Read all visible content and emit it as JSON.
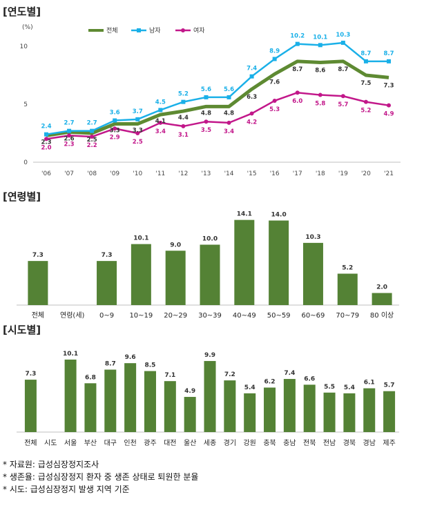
{
  "chart_data": [
    {
      "type": "line",
      "section_title": "[연도별]",
      "unit_label": "(%)",
      "categories": [
        "'06",
        "'07",
        "'08",
        "'09",
        "'10",
        "'11",
        "'12",
        "'13",
        "'14",
        "'15",
        "'16",
        "'17",
        "'18",
        "'19",
        "'20",
        "'21"
      ],
      "ylim": [
        0,
        10
      ],
      "yticks": [
        0,
        5,
        10
      ],
      "legend_position": "top",
      "series": [
        {
          "name": "전체",
          "color": "#5e8a32",
          "values": [
            2.3,
            2.6,
            2.5,
            3.3,
            3.3,
            4.1,
            4.4,
            4.8,
            4.8,
            6.3,
            7.6,
            8.7,
            8.6,
            8.7,
            7.5,
            7.3
          ]
        },
        {
          "name": "남자",
          "color": "#1ab0e8",
          "values": [
            2.4,
            2.7,
            2.7,
            3.6,
            3.7,
            4.5,
            5.2,
            5.6,
            5.6,
            7.4,
            8.9,
            10.2,
            10.1,
            10.3,
            8.7,
            8.7
          ]
        },
        {
          "name": "여자",
          "color": "#c2178a",
          "values": [
            2.0,
            2.3,
            2.2,
            2.9,
            2.5,
            3.4,
            3.1,
            3.5,
            3.4,
            4.2,
            5.3,
            6.0,
            5.8,
            5.7,
            5.2,
            4.9
          ]
        }
      ]
    },
    {
      "type": "bar",
      "section_title": "[연령별]",
      "color": "#548235",
      "categories": [
        "전체",
        "연령(세)",
        "0~9",
        "10~19",
        "20~29",
        "30~39",
        "40~49",
        "50~59",
        "60~69",
        "70~79",
        "80 이상"
      ],
      "values": [
        7.3,
        null,
        7.3,
        10.1,
        9.0,
        10.0,
        14.1,
        14.0,
        10.3,
        5.2,
        2.0
      ],
      "value_labels": [
        "7.3",
        "",
        "7.3",
        "10.1",
        "9.0",
        "10.0",
        "14.1",
        "14.0",
        "10.3",
        "5.2",
        "2.0"
      ]
    },
    {
      "type": "bar",
      "section_title": "[시도별]",
      "color": "#548235",
      "categories": [
        "전체",
        "시도",
        "서울",
        "부산",
        "대구",
        "인천",
        "광주",
        "대전",
        "울산",
        "세종",
        "경기",
        "강원",
        "충북",
        "충남",
        "전북",
        "전남",
        "경북",
        "경남",
        "제주"
      ],
      "values": [
        7.3,
        null,
        10.1,
        6.8,
        8.7,
        9.6,
        8.5,
        7.1,
        4.9,
        9.9,
        7.2,
        5.4,
        6.2,
        7.4,
        6.6,
        5.5,
        5.4,
        6.1,
        5.7
      ],
      "value_labels": [
        "7.3",
        "",
        "10.1",
        "6.8",
        "8.7",
        "9.6",
        "8.5",
        "7.1",
        "4.9",
        "9.9",
        "7.2",
        "5.4",
        "6.2",
        "7.4",
        "6.6",
        "5.5",
        "5.4",
        "6.1",
        "5.7"
      ]
    }
  ],
  "notes": [
    "* 자료원: 급성심장정지조사",
    "* 생존율: 급성심장정지 환자 중 생존 상태로 퇴원한 분율",
    "* 시도: 급성심장정지 발생 지역 기준"
  ]
}
